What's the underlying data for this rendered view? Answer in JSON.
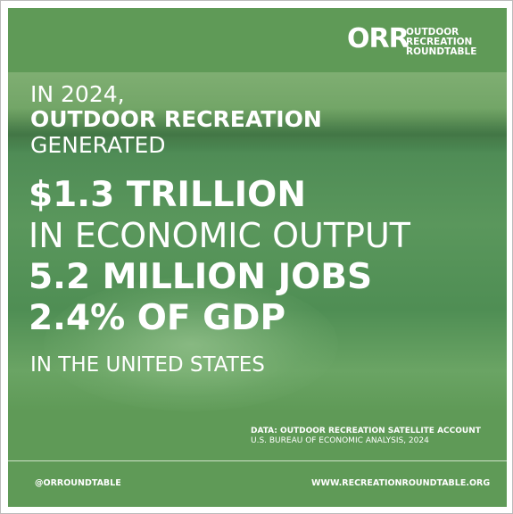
{
  "logo": {
    "mark": "ORR",
    "lines": [
      "OUTDOOR",
      "RECREATION",
      "ROUNDTABLE"
    ]
  },
  "headline": {
    "intro": [
      "IN 2024,",
      "OUTDOOR RECREATION",
      "GENERATED"
    ],
    "stats": [
      "$1.3 TRILLION",
      "IN ECONOMIC OUTPUT",
      "5.2 MILLION JOBS",
      "2.4% OF GDP"
    ],
    "outro": "IN THE UNITED STATES"
  },
  "source": {
    "title": "DATA: OUTDOOR RECREATION SATELLITE ACCOUNT",
    "detail": "U.S. BUREAU OF ECONOMIC ANALYSIS, 2024"
  },
  "footer": {
    "handle": "@ORROUNDTABLE",
    "website": "WWW.RECREATIONROUNDTABLE.ORG"
  }
}
